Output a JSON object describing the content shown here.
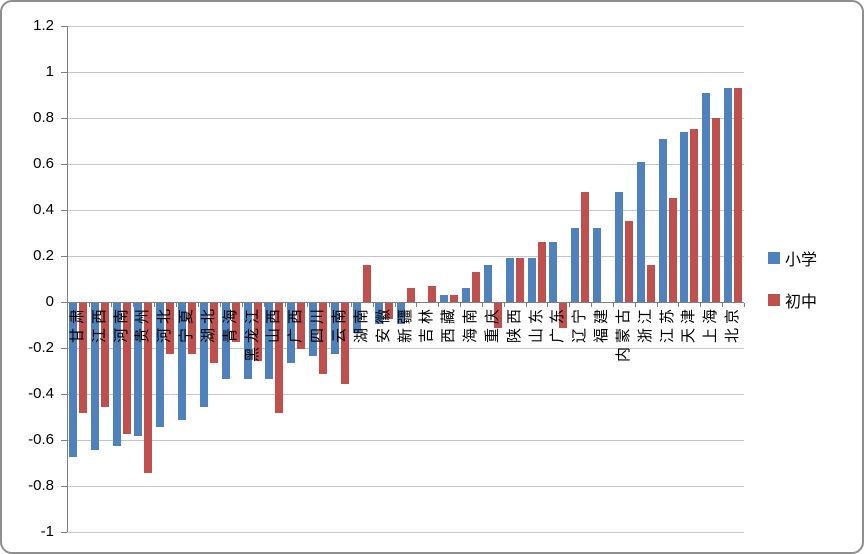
{
  "chart_data": {
    "type": "bar",
    "title": "",
    "xlabel": "",
    "ylabel": "",
    "categories": [
      "甘肃",
      "江西",
      "河南",
      "贵州",
      "河北",
      "宁夏",
      "湖北",
      "青海",
      "黑龙江",
      "山西",
      "广西",
      "四川",
      "云南",
      "湖南",
      "安徽",
      "新疆",
      "吉林",
      "西藏",
      "海南",
      "重庆",
      "陕西",
      "山东",
      "广东",
      "辽宁",
      "福建",
      "内蒙古",
      "浙江",
      "江苏",
      "天津",
      "上海",
      "北京"
    ],
    "series": [
      {
        "name": "小学",
        "color": "#4F81BD",
        "values": [
          -0.67,
          -0.64,
          -0.62,
          -0.58,
          -0.54,
          -0.51,
          -0.45,
          -0.33,
          -0.33,
          -0.33,
          -0.26,
          -0.23,
          -0.22,
          -0.13,
          -0.09,
          -0.09,
          0,
          0.03,
          0.06,
          0.16,
          0.19,
          0.19,
          0.26,
          0.32,
          0.32,
          0.48,
          0.61,
          0.71,
          0.74,
          0.91,
          0.93
        ]
      },
      {
        "name": "初中",
        "color": "#C0504D",
        "values": [
          -0.48,
          -0.45,
          -0.57,
          -0.74,
          -0.22,
          -0.22,
          -0.26,
          -0.17,
          -0.25,
          -0.48,
          -0.2,
          -0.31,
          -0.35,
          0.16,
          -0.07,
          0.06,
          0.07,
          0.03,
          0.13,
          -0.11,
          0.19,
          0.26,
          -0.11,
          0.48,
          0,
          0.35,
          0.16,
          0.45,
          0.75,
          0.8,
          0.93
        ]
      }
    ],
    "ylim": [
      -1,
      1.2
    ],
    "ytick_step": 0.2,
    "ytick_labels": [
      "1.2",
      "1",
      "0.8",
      "0.6",
      "0.4",
      "0.2",
      "0",
      "-0.2",
      "-0.4",
      "-0.6",
      "-0.8",
      "-1"
    ],
    "grid": true,
    "legend_position": "right"
  }
}
